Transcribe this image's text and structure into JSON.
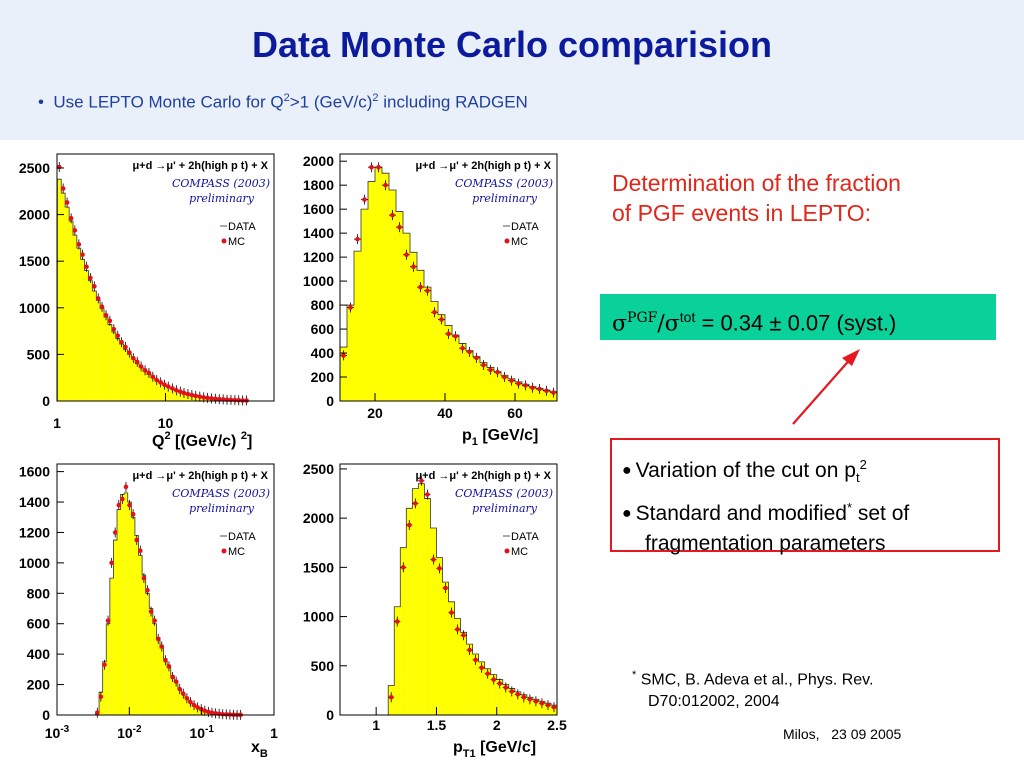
{
  "slide": {
    "title": "Data Monte Carlo comparision",
    "bullet_prefix": "Use LEPTO Monte Carlo for Q",
    "bullet_sup1": "2",
    "bullet_mid": ">1 (GeV/c)",
    "bullet_sup2": "2",
    "bullet_suffix": " including RADGEN",
    "red_text": "Determination of the fraction of PGF events in LEPTO:",
    "result_sigma": "σ",
    "result_pgf": "PGF",
    "result_slash_sigma": "/σ",
    "result_tot": "tot",
    "result_value": " = 0.34 ± 0.07 (syst.)",
    "variation_line1": "Variation of the cut on p",
    "variation_sub": "t",
    "variation_sup": "2",
    "variation_line2": "Standard and modified",
    "variation_line2_sup": "*",
    "variation_line2_end": " set of",
    "variation_line3": "fragmentation parameters",
    "bullet_symbol": "●",
    "footnote_sup": "*",
    "footnote_line1": " SMC, B. Adeva et al., Phys. Rev.",
    "footnote_line2": "D70:012002, 2004",
    "footer": "Milos,   23 09 2005"
  },
  "plot_common": {
    "process": "μ+d →μ' + 2h(high p t) + X",
    "compass": "COMPASS (2003)",
    "preliminary": "preliminary",
    "legend_data": "DATA",
    "legend_mc": "MC",
    "colors": {
      "fill": "#ffff00",
      "mc": "#e4101a",
      "axis": "#000000"
    }
  },
  "chart_data": [
    {
      "type": "bar",
      "name": "Q2",
      "xlabel": "Q² [(GeV/c) ²]",
      "xscale": "log",
      "xlim": [
        1,
        100
      ],
      "ylim": [
        0,
        2650
      ],
      "ytick_values": [
        0,
        500,
        1000,
        1500,
        2000,
        2500
      ],
      "xtick_values": [
        1,
        10
      ],
      "xtick_labels": [
        "1",
        "10"
      ],
      "x": [
        1.05,
        1.14,
        1.24,
        1.35,
        1.46,
        1.59,
        1.72,
        1.87,
        2.03,
        2.21,
        2.4,
        2.6,
        2.83,
        3.07,
        3.34,
        3.63,
        3.94,
        4.28,
        4.65,
        5.05,
        5.49,
        5.96,
        6.48,
        7.04,
        7.64,
        8.3,
        9.02,
        9.8,
        10.6,
        11.6,
        12.6,
        13.7,
        14.8,
        16.1,
        17.5,
        19.0,
        20.7,
        22.5,
        24.4,
        26.5,
        28.8,
        31.3,
        34.0,
        36.9,
        40.1,
        43.6,
        47.3,
        51.4,
        55.9
      ],
      "data": [
        2380,
        2230,
        2080,
        1930,
        1780,
        1640,
        1520,
        1400,
        1290,
        1180,
        1080,
        990,
        900,
        820,
        740,
        670,
        610,
        550,
        500,
        450,
        400,
        360,
        320,
        285,
        250,
        220,
        195,
        170,
        150,
        130,
        112,
        97,
        84,
        72,
        62,
        53,
        45,
        38,
        32,
        27,
        23,
        19,
        16,
        13,
        11,
        9,
        7,
        5,
        4
      ],
      "mc": [
        2510,
        2280,
        2130,
        1960,
        1830,
        1680,
        1570,
        1440,
        1320,
        1230,
        1100,
        1010,
        920,
        860,
        770,
        700,
        630,
        580,
        520,
        460,
        420,
        370,
        330,
        300,
        260,
        225,
        200,
        175,
        155,
        135,
        115,
        100,
        86,
        75,
        64,
        55,
        47,
        39,
        33,
        28,
        24,
        20,
        17,
        14,
        12,
        10,
        8,
        6,
        5
      ]
    },
    {
      "type": "bar",
      "name": "p1",
      "xlabel": "p 1 [GeV/c]",
      "xscale": "linear",
      "xlim": [
        10,
        72
      ],
      "ylim": [
        0,
        2060
      ],
      "ytick_values": [
        0,
        200,
        400,
        600,
        800,
        1000,
        1200,
        1400,
        1600,
        1800,
        2000
      ],
      "xtick_values": [
        20,
        40,
        60
      ],
      "xtick_labels": [
        "20",
        "40",
        "60"
      ],
      "x": [
        11,
        13,
        15,
        17,
        19,
        21,
        23,
        25,
        27,
        29,
        31,
        33,
        35,
        37,
        39,
        41,
        43,
        45,
        47,
        49,
        51,
        53,
        55,
        57,
        59,
        61,
        63,
        65,
        67,
        69,
        71
      ],
      "data": [
        450,
        800,
        1250,
        1600,
        1830,
        1950,
        1900,
        1760,
        1580,
        1400,
        1240,
        1090,
        950,
        830,
        720,
        630,
        550,
        480,
        420,
        370,
        320,
        280,
        245,
        215,
        185,
        160,
        140,
        120,
        105,
        90,
        78
      ],
      "mc": [
        380,
        780,
        1350,
        1680,
        1950,
        1950,
        1800,
        1550,
        1450,
        1220,
        1120,
        950,
        920,
        740,
        680,
        560,
        540,
        440,
        410,
        360,
        300,
        260,
        240,
        200,
        170,
        145,
        130,
        110,
        100,
        85,
        70
      ]
    },
    {
      "type": "bar",
      "name": "xB",
      "xlabel": "x B",
      "xscale": "log",
      "xlim": [
        0.001,
        1
      ],
      "ylim": [
        0,
        1650
      ],
      "ytick_values": [
        0,
        200,
        400,
        600,
        800,
        1000,
        1200,
        1400,
        1600
      ],
      "xtick_values": [
        0.001,
        0.01,
        0.1,
        1
      ],
      "xtick_labels": [
        "10-3",
        "10-2",
        "10-1",
        "1"
      ],
      "x": [
        0.00361,
        0.00404,
        0.00453,
        0.00508,
        0.00569,
        0.00638,
        0.00715,
        0.00801,
        0.00898,
        0.01007,
        0.01128,
        0.01265,
        0.01418,
        0.01589,
        0.01781,
        0.01996,
        0.02237,
        0.02508,
        0.0281,
        0.0315,
        0.03531,
        0.03957,
        0.04436,
        0.04972,
        0.05572,
        0.06246,
        0.07,
        0.07846,
        0.08794,
        0.09856,
        0.11047,
        0.12382,
        0.13878,
        0.15555,
        0.17434,
        0.1954,
        0.21901,
        0.24547,
        0.27514,
        0.30838,
        0.34564
      ],
      "data": [
        20,
        150,
        350,
        600,
        900,
        1150,
        1350,
        1450,
        1460,
        1400,
        1300,
        1180,
        1050,
        920,
        800,
        700,
        600,
        510,
        440,
        370,
        310,
        260,
        215,
        175,
        140,
        112,
        88,
        68,
        52,
        40,
        30,
        22,
        16,
        12,
        9,
        6,
        4,
        3,
        2,
        1,
        1
      ],
      "mc": [
        15,
        120,
        330,
        620,
        1000,
        1200,
        1380,
        1420,
        1500,
        1380,
        1320,
        1150,
        1080,
        900,
        820,
        680,
        620,
        500,
        450,
        360,
        320,
        250,
        220,
        170,
        140,
        110,
        85,
        65,
        50,
        38,
        28,
        20,
        15,
        11,
        8,
        5,
        4,
        3,
        2,
        1,
        1
      ]
    },
    {
      "type": "bar",
      "name": "pT1",
      "xlabel": "p T1 [GeV/c]",
      "xscale": "linear",
      "xlim": [
        0.7,
        2.5
      ],
      "ylim": [
        0,
        2550
      ],
      "ytick_values": [
        0,
        500,
        1000,
        1500,
        2000,
        2500
      ],
      "xtick_values": [
        1,
        1.5,
        2,
        2.5
      ],
      "xtick_labels": [
        "1",
        "1.5",
        "2",
        "2.5"
      ],
      "x": [
        1.125,
        1.175,
        1.225,
        1.275,
        1.325,
        1.375,
        1.425,
        1.475,
        1.525,
        1.575,
        1.625,
        1.675,
        1.725,
        1.775,
        1.825,
        1.875,
        1.925,
        1.975,
        2.025,
        2.075,
        2.125,
        2.175,
        2.225,
        2.275,
        2.325,
        2.375,
        2.425,
        2.475
      ],
      "data": [
        300,
        1100,
        1700,
        2100,
        2300,
        2350,
        2200,
        1900,
        1600,
        1350,
        1150,
        980,
        840,
        720,
        620,
        540,
        470,
        410,
        360,
        310,
        270,
        235,
        205,
        180,
        160,
        140,
        120,
        100
      ],
      "mc": [
        180,
        950,
        1500,
        1930,
        2150,
        2380,
        2240,
        1580,
        1490,
        1290,
        1040,
        870,
        810,
        660,
        560,
        480,
        420,
        360,
        320,
        280,
        240,
        210,
        180,
        160,
        140,
        120,
        100,
        80
      ]
    }
  ]
}
